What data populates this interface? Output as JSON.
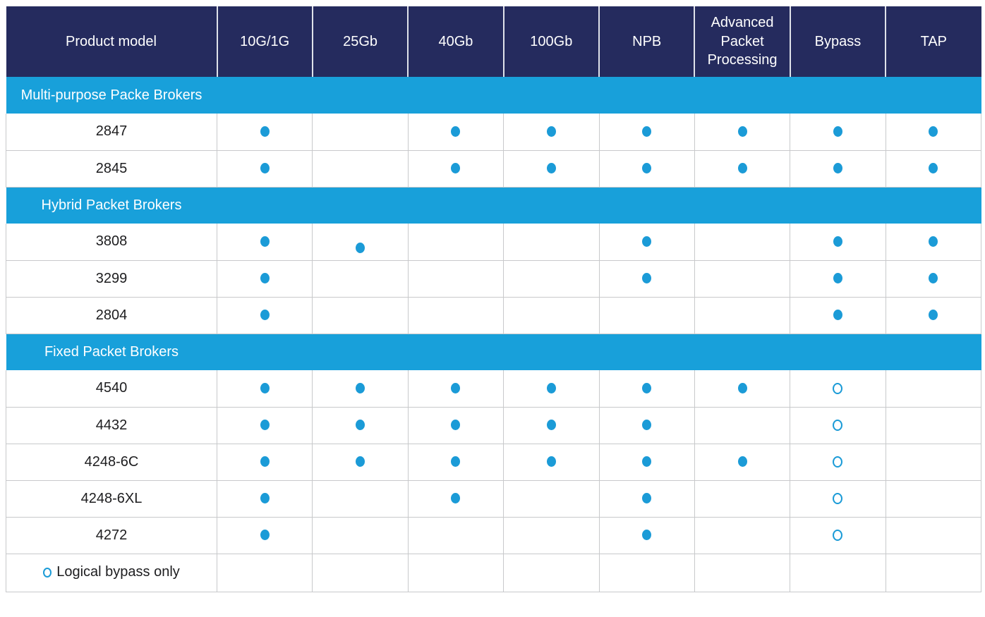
{
  "colors": {
    "header_bg": "#252b5e",
    "header_text": "#ffffff",
    "section_bg": "#18a0da",
    "section_text": "#ffffff",
    "body_text": "#1d1d1f",
    "dot_blue": "#1b9bd7",
    "grid_border": "#c8c9cb",
    "page_bg": "#ffffff"
  },
  "table": {
    "columns": [
      "Product model",
      "10G/1G",
      "25Gb",
      "40Gb",
      "100Gb",
      "NPB",
      "Advanced Packet Processing",
      "Bypass",
      "TAP"
    ],
    "sections": [
      {
        "label": "Multi-purpose Packe Brokers",
        "rows": [
          {
            "model": "2847",
            "features": [
              "dot",
              "",
              "dot",
              "dot",
              "dot",
              "dot",
              "dot",
              "dot"
            ]
          },
          {
            "model": "2845",
            "features": [
              "dot",
              "",
              "dot",
              "dot",
              "dot",
              "dot",
              "dot",
              "dot"
            ]
          }
        ]
      },
      {
        "label": "Hybrid Packet Brokers",
        "rows": [
          {
            "model": "3808",
            "features": [
              "dot",
              "dot-low",
              "",
              "",
              "dot",
              "",
              "dot",
              "dot"
            ]
          },
          {
            "model": "3299",
            "features": [
              "dot",
              "",
              "",
              "",
              "dot",
              "",
              "dot",
              "dot"
            ]
          },
          {
            "model": "2804",
            "features": [
              "dot",
              "",
              "",
              "",
              "",
              "",
              "dot",
              "dot"
            ]
          }
        ]
      },
      {
        "label": "Fixed Packet Brokers",
        "rows": [
          {
            "model": "4540",
            "features": [
              "dot",
              "dot",
              "dot",
              "dot",
              "dot",
              "dot",
              "open",
              ""
            ]
          },
          {
            "model": "4432",
            "features": [
              "dot",
              "dot",
              "dot",
              "dot",
              "dot",
              "",
              "open",
              ""
            ]
          },
          {
            "model": "4248-6C",
            "features": [
              "dot",
              "dot",
              "dot",
              "dot",
              "dot",
              "dot",
              "open",
              ""
            ]
          },
          {
            "model": "4248-6XL",
            "features": [
              "dot",
              "",
              "dot",
              "",
              "dot",
              "",
              "open",
              ""
            ]
          },
          {
            "model": "4272",
            "features": [
              "dot",
              "",
              "",
              "",
              "dot",
              "",
              "open",
              ""
            ]
          }
        ]
      }
    ],
    "legend": {
      "symbol": "open-circle",
      "label": "Logical bypass only"
    }
  }
}
